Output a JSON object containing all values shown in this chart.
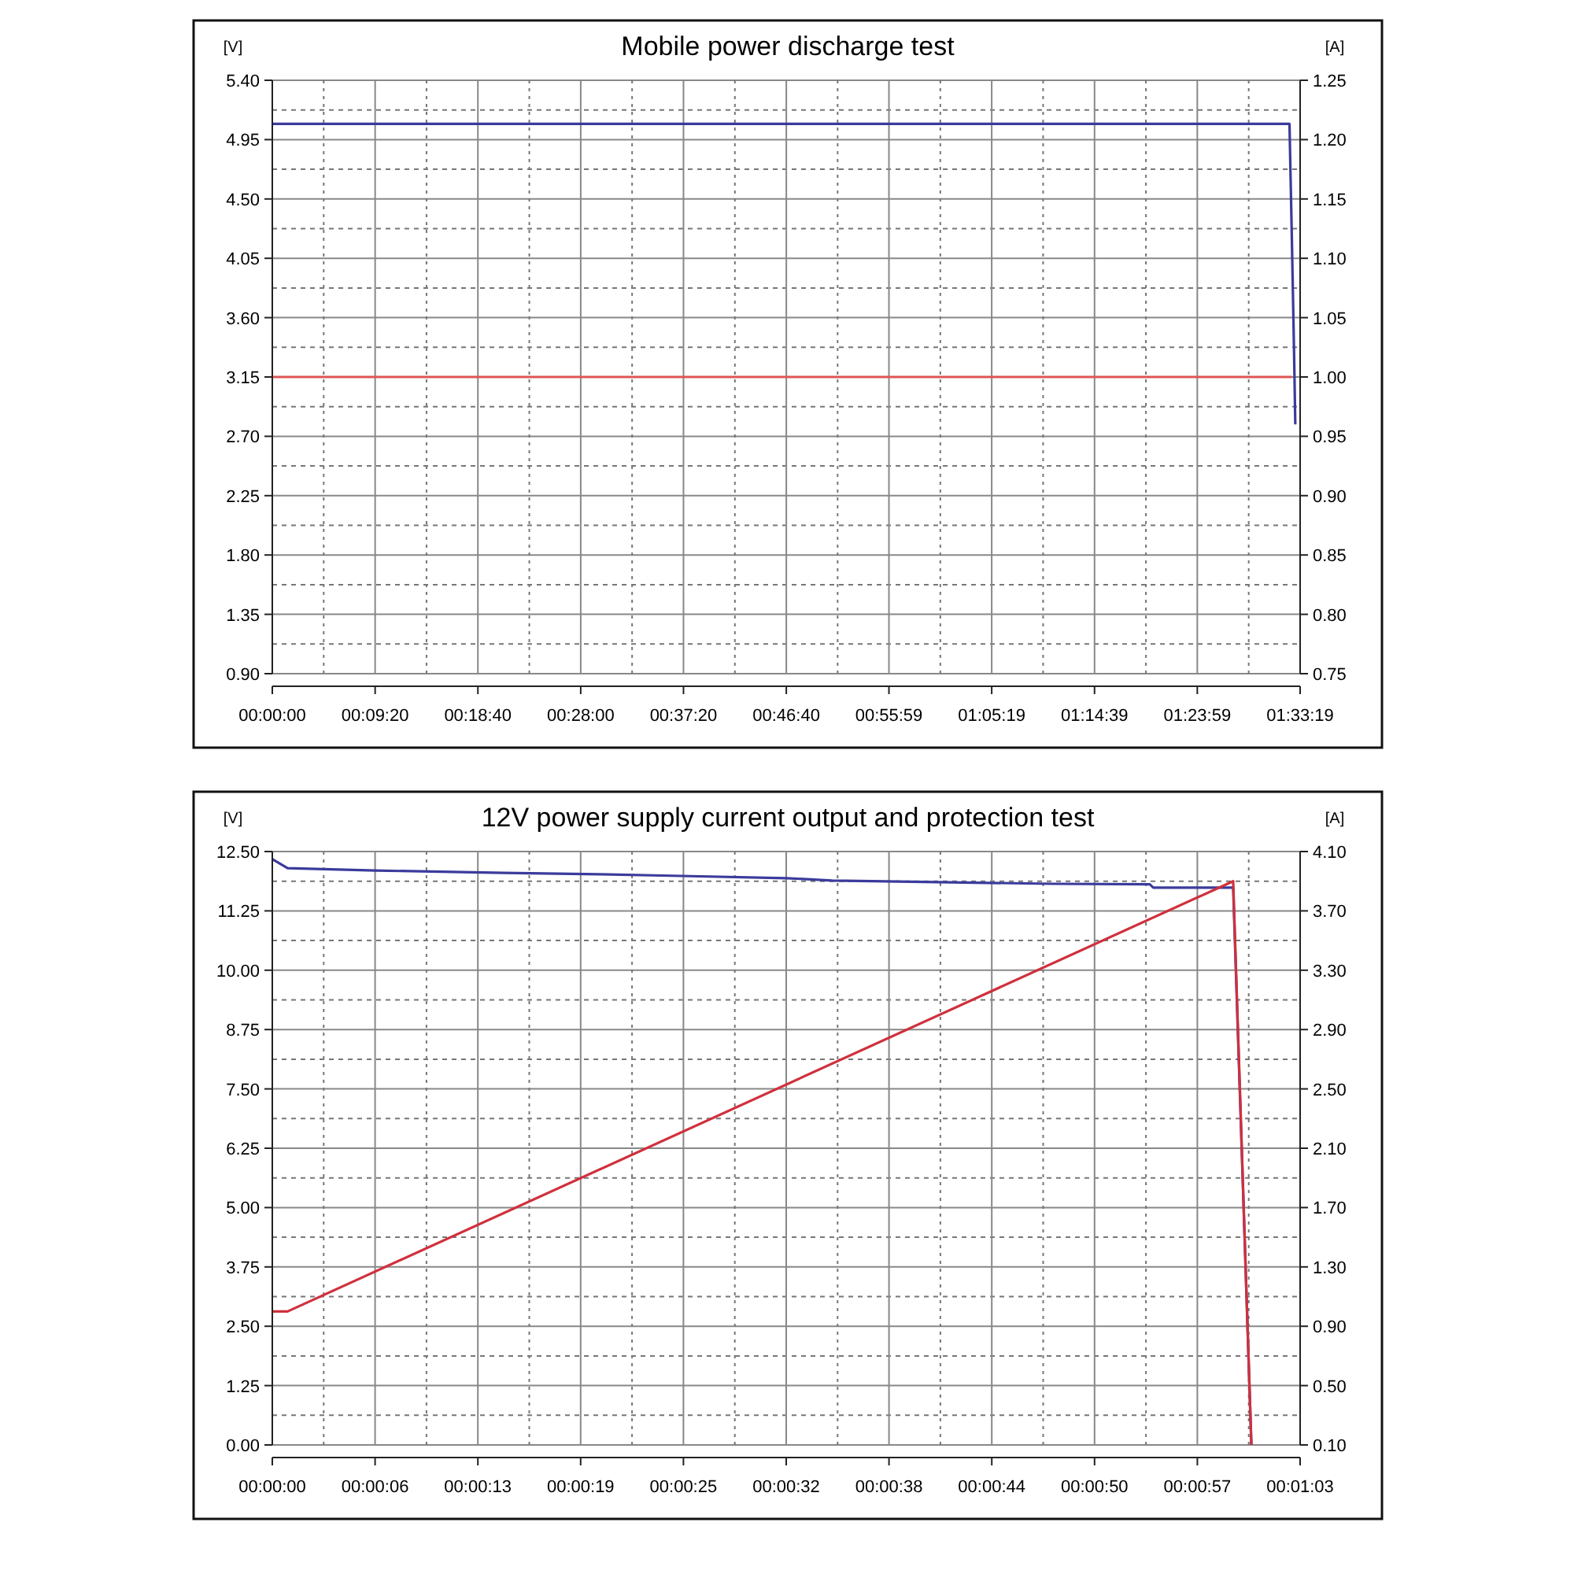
{
  "chart_data": [
    {
      "type": "line",
      "title": "Mobile power discharge test",
      "ylabel": "[V]",
      "y2label": "[A]",
      "grid": true,
      "xlim": [
        0,
        1.5553
      ],
      "xticks": [
        {
          "value": 0,
          "label": "00:00:00"
        },
        {
          "value": 0.1556,
          "label": "00:09:20"
        },
        {
          "value": 0.3111,
          "label": "00:18:40"
        },
        {
          "value": 0.4667,
          "label": "00:28:00"
        },
        {
          "value": 0.6222,
          "label": "00:37:20"
        },
        {
          "value": 0.7778,
          "label": "00:46:40"
        },
        {
          "value": 0.9331,
          "label": "00:55:59"
        },
        {
          "value": 1.0886,
          "label": "01:05:19"
        },
        {
          "value": 1.2442,
          "label": "01:14:39"
        },
        {
          "value": 1.3997,
          "label": "01:23:59"
        },
        {
          "value": 1.5553,
          "label": "01:33:19"
        }
      ],
      "ylim": [
        0.9,
        5.4
      ],
      "yticks": [
        {
          "value": 0.9,
          "label": "0.90"
        },
        {
          "value": 1.35,
          "label": "1.35"
        },
        {
          "value": 1.8,
          "label": "1.80"
        },
        {
          "value": 2.25,
          "label": "2.25"
        },
        {
          "value": 2.7,
          "label": "2.70"
        },
        {
          "value": 3.15,
          "label": "3.15"
        },
        {
          "value": 3.6,
          "label": "3.60"
        },
        {
          "value": 4.05,
          "label": "4.05"
        },
        {
          "value": 4.5,
          "label": "4.50"
        },
        {
          "value": 4.95,
          "label": "4.95"
        },
        {
          "value": 5.4,
          "label": "5.40"
        }
      ],
      "y2lim": [
        0.75,
        1.25
      ],
      "y2ticks": [
        {
          "value": 0.75,
          "label": "0.75"
        },
        {
          "value": 0.8,
          "label": "0.80"
        },
        {
          "value": 0.85,
          "label": "0.85"
        },
        {
          "value": 0.9,
          "label": "0.90"
        },
        {
          "value": 0.95,
          "label": "0.95"
        },
        {
          "value": 1.0,
          "label": "1.00"
        },
        {
          "value": 1.05,
          "label": "1.05"
        },
        {
          "value": 1.1,
          "label": "1.10"
        },
        {
          "value": 1.15,
          "label": "1.15"
        },
        {
          "value": 1.2,
          "label": "1.20"
        },
        {
          "value": 1.25,
          "label": "1.25"
        }
      ],
      "series": [
        {
          "color": "#3b3b9c",
          "x": [
            0,
            1.5392,
            1.5426,
            1.546,
            1.548
          ],
          "values": [
            5.07,
            5.07,
            4.25,
            3.37,
            2.79
          ]
        },
        {
          "color": "#e05555",
          "axis": "y2",
          "x": [
            0,
            1.5426
          ],
          "values": [
            1.0,
            1.0
          ]
        }
      ]
    },
    {
      "type": "line",
      "title": "12V power supply current output and protection test",
      "ylabel": "[V]",
      "y2label": "[A]",
      "grid": true,
      "xlim": [
        0,
        0.0175
      ],
      "xticks": [
        {
          "value": 0,
          "label": "00:00:00"
        },
        {
          "value": 0.00175,
          "label": "00:00:06"
        },
        {
          "value": 0.0035,
          "label": "00:00:13"
        },
        {
          "value": 0.00525,
          "label": "00:00:19"
        },
        {
          "value": 0.007,
          "label": "00:00:25"
        },
        {
          "value": 0.00875,
          "label": "00:00:32"
        },
        {
          "value": 0.0105,
          "label": "00:00:38"
        },
        {
          "value": 0.01225,
          "label": "00:00:44"
        },
        {
          "value": 0.014,
          "label": "00:00:50"
        },
        {
          "value": 0.01575,
          "label": "00:00:57"
        },
        {
          "value": 0.0175,
          "label": "00:01:03"
        }
      ],
      "ylim": [
        0,
        12.5
      ],
      "yticks": [
        {
          "value": 0,
          "label": "0.00"
        },
        {
          "value": 1.25,
          "label": "1.25"
        },
        {
          "value": 2.5,
          "label": "2.50"
        },
        {
          "value": 3.75,
          "label": "3.75"
        },
        {
          "value": 5,
          "label": "5.00"
        },
        {
          "value": 6.25,
          "label": "6.25"
        },
        {
          "value": 7.5,
          "label": "7.50"
        },
        {
          "value": 8.75,
          "label": "8.75"
        },
        {
          "value": 10,
          "label": "10.00"
        },
        {
          "value": 11.25,
          "label": "11.25"
        },
        {
          "value": 12.5,
          "label": "12.50"
        }
      ],
      "y2lim": [
        0.1,
        4.1
      ],
      "y2ticks": [
        {
          "value": 0.1,
          "label": "0.10"
        },
        {
          "value": 0.5,
          "label": "0.50"
        },
        {
          "value": 0.9,
          "label": "0.90"
        },
        {
          "value": 1.3,
          "label": "1.30"
        },
        {
          "value": 1.7,
          "label": "1.70"
        },
        {
          "value": 2.1,
          "label": "2.10"
        },
        {
          "value": 2.5,
          "label": "2.50"
        },
        {
          "value": 2.9,
          "label": "2.90"
        },
        {
          "value": 3.3,
          "label": "3.30"
        },
        {
          "value": 3.7,
          "label": "3.70"
        },
        {
          "value": 4.1,
          "label": "4.10"
        }
      ],
      "series": [
        {
          "color": "#3b3b9c",
          "x": [
            0,
            0.00026,
            0.00175,
            0.00394,
            0.00556,
            0.0068,
            0.00875,
            0.00953,
            0.0111,
            0.01328,
            0.01494,
            0.015,
            0.01586,
            0.01636,
            0.01667
          ],
          "values": [
            12.34,
            12.15,
            12.1,
            12.05,
            12.02,
            11.99,
            11.94,
            11.89,
            11.86,
            11.82,
            11.81,
            11.74,
            11.74,
            11.74,
            0
          ]
        },
        {
          "color": "#d0303c",
          "axis": "y2",
          "x": [
            0,
            0.00026,
            0.01636,
            0.01667
          ],
          "values": [
            1.0,
            1.0,
            3.9,
            0.1
          ]
        }
      ]
    }
  ]
}
